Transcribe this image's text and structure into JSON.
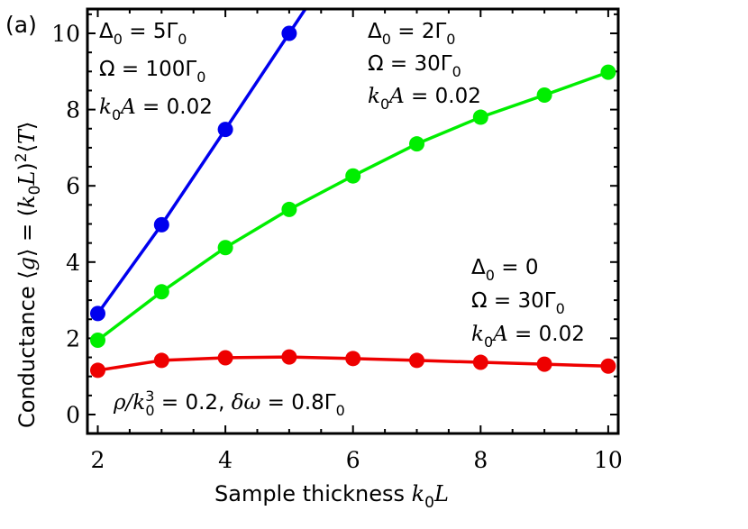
{
  "panel_label": "(a)",
  "chart_data": {
    "type": "line",
    "title": "",
    "xlabel": "Sample thickness k0L",
    "ylabel": "Conductance ⟨g⟩ = (k0L)^2⟨T⟩",
    "xlim": [
      1.85,
      10.15
    ],
    "ylim": [
      -0.5,
      10.6
    ],
    "x_ticks": [
      2,
      4,
      6,
      8,
      10
    ],
    "y_ticks": [
      0,
      2,
      4,
      6,
      8,
      10
    ],
    "grid": false,
    "legend": "none (inline annotations)",
    "x": [
      2,
      3,
      4,
      5,
      6,
      7,
      8,
      9,
      10
    ],
    "series": [
      {
        "name": "Δ0 = 5Γ0, Ω = 100Γ0, k0A = 0.02",
        "color": "#0000ee",
        "x": [
          2,
          3,
          4,
          5
        ],
        "values": [
          2.65,
          4.98,
          7.48,
          10.0
        ]
      },
      {
        "name": "Δ0 = 2Γ0, Ω = 30Γ0, k0A = 0.02",
        "color": "#00ee00",
        "x": [
          2,
          3,
          4,
          5,
          6,
          7,
          8,
          9,
          10
        ],
        "values": [
          1.95,
          3.22,
          4.38,
          5.38,
          6.26,
          7.1,
          7.8,
          8.38,
          8.98
        ]
      },
      {
        "name": "Δ0 = 0, Ω = 30Γ0, k0A = 0.02",
        "color": "#ee0000",
        "x": [
          2,
          3,
          4,
          5,
          6,
          7,
          8,
          9,
          10
        ],
        "values": [
          1.16,
          1.42,
          1.49,
          1.51,
          1.47,
          1.42,
          1.37,
          1.32,
          1.27
        ]
      }
    ],
    "annotations": [
      "Δ0 = 5Γ0",
      "Ω = 100Γ0",
      "k0A = 0.02",
      "Δ0 = 2Γ0",
      "Ω = 30Γ0",
      "k0A = 0.02",
      "Δ0 = 0",
      "Ω = 30Γ0",
      "k0A = 0.02",
      "ρ/k0^3 = 0.2, δω = 0.8Γ0"
    ]
  },
  "labels": {
    "xlabel_text": "Sample thickness ",
    "ylabel_text": "Conductance ",
    "blue": {
      "delta": "= 5Γ",
      "omega": "Ω = 100Γ",
      "ka": "= 0.02"
    },
    "green": {
      "delta": "= 2Γ",
      "omega": "Ω = 30Γ",
      "ka": "= 0.02"
    },
    "red": {
      "delta": "= 0",
      "omega": "Ω = 30Γ",
      "ka": "= 0.02"
    },
    "bottom": {
      "rho": " = 0.2, ",
      "domega": " = 0.8Γ"
    }
  }
}
